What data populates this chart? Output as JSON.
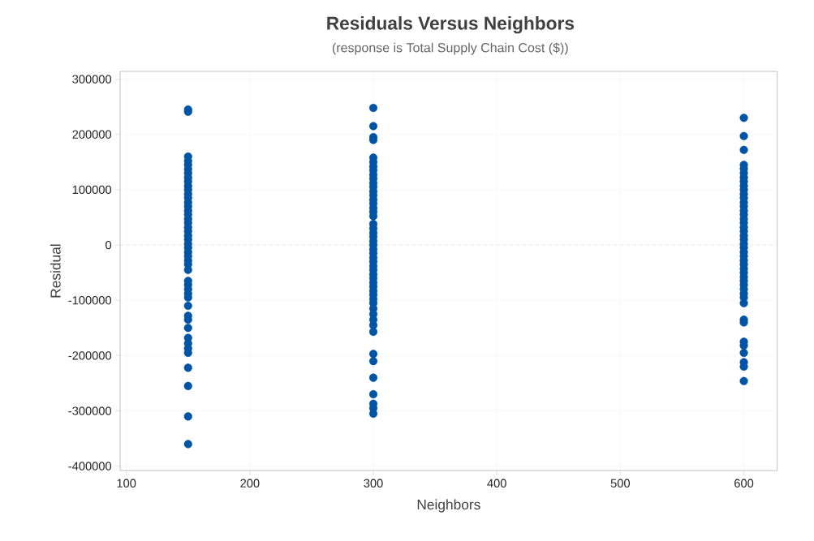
{
  "chart_data": {
    "type": "scatter",
    "title": "Residuals Versus Neighbors",
    "subtitle": "(response is Total Supply Chain Cost ($))",
    "xlabel": "Neighbors",
    "ylabel": "Residual",
    "series": [
      {
        "color": "#0054a6",
        "x": [
          150,
          150,
          150,
          150,
          150,
          150,
          150,
          150,
          150,
          150,
          150,
          150,
          150,
          150,
          150,
          150,
          150,
          150,
          150,
          150,
          150,
          150,
          150,
          150,
          150,
          150,
          150,
          150,
          150,
          150,
          150,
          150,
          150,
          150,
          150,
          150,
          150,
          150,
          150,
          150,
          150,
          150,
          150,
          150,
          150,
          150,
          150,
          300,
          300,
          300,
          300,
          300,
          300,
          300,
          300,
          300,
          300,
          300,
          300,
          300,
          300,
          300,
          300,
          300,
          300,
          300,
          300,
          300,
          300,
          300,
          300,
          300,
          300,
          300,
          300,
          300,
          300,
          300,
          300,
          300,
          300,
          300,
          300,
          300,
          300,
          300,
          300,
          300,
          300,
          300,
          300,
          300,
          300,
          300,
          300,
          300,
          300,
          300,
          600,
          600,
          600,
          600,
          600,
          600,
          600,
          600,
          600,
          600,
          600,
          600,
          600,
          600,
          600,
          600,
          600,
          600,
          600,
          600,
          600,
          600,
          600,
          600,
          600,
          600,
          600,
          600,
          600,
          600,
          600,
          600,
          600,
          600,
          600,
          600,
          600,
          600,
          600,
          600,
          600,
          600,
          600,
          600,
          600
        ],
        "values": [
          245000,
          241000,
          160000,
          152000,
          145000,
          137000,
          130000,
          122000,
          115000,
          107000,
          100000,
          92000,
          85000,
          77000,
          70000,
          62000,
          55000,
          47000,
          40000,
          32000,
          25000,
          17000,
          10000,
          2000,
          -5000,
          -13000,
          -20000,
          -28000,
          -35000,
          -45000,
          -65000,
          -72000,
          -80000,
          -88000,
          -95000,
          -110000,
          -128000,
          -135000,
          -150000,
          -168000,
          -178000,
          -187000,
          -195000,
          -222000,
          -255000,
          -310000,
          -360000,
          248000,
          215000,
          195000,
          190000,
          158000,
          150000,
          142000,
          135000,
          127000,
          120000,
          112000,
          105000,
          97000,
          90000,
          82000,
          75000,
          67000,
          60000,
          52000,
          38000,
          30000,
          22000,
          15000,
          7000,
          0,
          -8000,
          -15000,
          -23000,
          -30000,
          -38000,
          -45000,
          -53000,
          -60000,
          -68000,
          -75000,
          -83000,
          -90000,
          -98000,
          -105000,
          -115000,
          -125000,
          -135000,
          -145000,
          -157000,
          -197000,
          -210000,
          -240000,
          -270000,
          -287000,
          -295000,
          -305000,
          230000,
          197000,
          172000,
          145000,
          138000,
          130000,
          122000,
          115000,
          107000,
          100000,
          92000,
          85000,
          77000,
          70000,
          62000,
          55000,
          47000,
          40000,
          32000,
          25000,
          17000,
          10000,
          2000,
          -5000,
          -13000,
          -20000,
          -28000,
          -35000,
          -43000,
          -50000,
          -58000,
          -65000,
          -72000,
          -80000,
          -88000,
          -95000,
          -105000,
          -135000,
          -140000,
          -175000,
          -182000,
          -195000,
          -212000,
          -220000,
          -246000
        ]
      }
    ],
    "marker": "circle",
    "grid": true,
    "xlim": [
      95,
      627
    ],
    "ylim": [
      -408000,
      314000
    ],
    "xticks": [
      100,
      200,
      300,
      400,
      500,
      600
    ],
    "yticks": [
      -400000,
      -300000,
      -200000,
      -100000,
      0,
      100000,
      200000,
      300000
    ],
    "ref_lines": [
      {
        "axis": "y",
        "value": 0,
        "color": "#c8c8c8",
        "line_style": "dashed"
      }
    ]
  }
}
